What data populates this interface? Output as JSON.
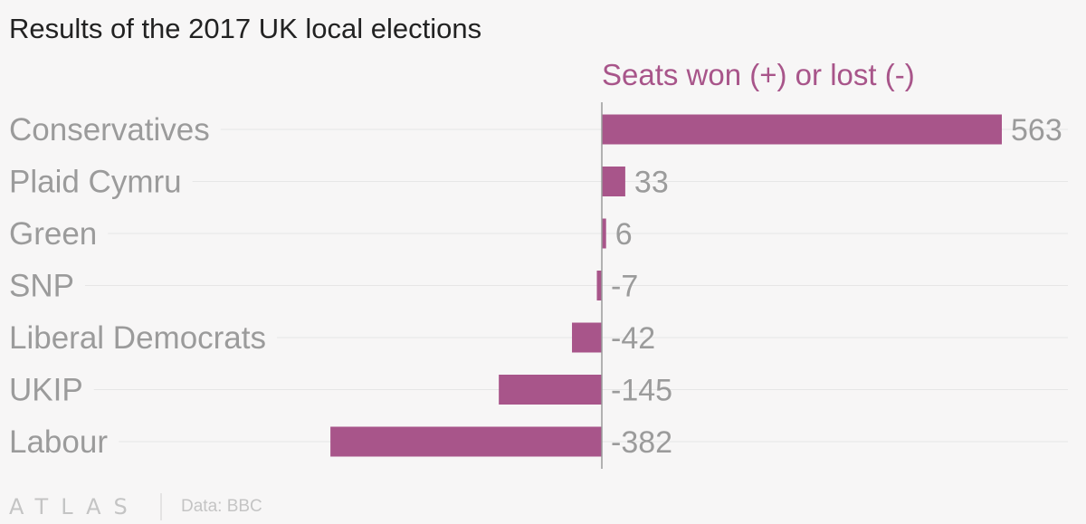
{
  "colors": {
    "bar": "#a8558a",
    "label": "#9b9b9b",
    "title": "#222222",
    "background": "#f7f6f6",
    "gridline": "#e6e6e6",
    "zero_line": "#9a9a9a"
  },
  "chart_data": {
    "type": "bar",
    "orientation": "horizontal",
    "title": "Results of the 2017 UK local elections",
    "value_axis_title": "Seats won (+) or lost (-)",
    "categories": [
      "Conservatives",
      "Plaid Cymru",
      "Green",
      "SNP",
      "Liberal Democrats",
      "UKIP",
      "Labour"
    ],
    "values": [
      563,
      33,
      6,
      -7,
      -42,
      -145,
      -382
    ],
    "value_labels": [
      "563",
      "33",
      "6",
      "-7",
      "-42",
      "-145",
      "-382"
    ],
    "xlim": [
      -382,
      563
    ],
    "grid": true,
    "legend": "none"
  },
  "footer": {
    "brand": "ATLAS",
    "source": "Data: BBC"
  }
}
